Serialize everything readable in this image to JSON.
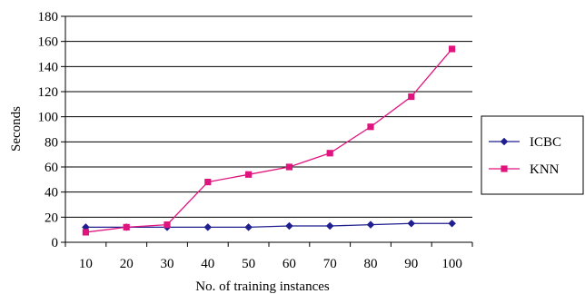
{
  "chart_data": {
    "type": "line",
    "title": "",
    "xlabel": "No. of training instances",
    "ylabel": "Seconds",
    "x": [
      10,
      20,
      30,
      40,
      50,
      60,
      70,
      80,
      90,
      100
    ],
    "x_tick_labels": [
      "10",
      "20",
      "30",
      "40",
      "50",
      "60",
      "70",
      "80",
      "90",
      "100"
    ],
    "ylim": [
      0,
      180
    ],
    "y_ticks": [
      0,
      20,
      40,
      60,
      80,
      100,
      120,
      140,
      160,
      180
    ],
    "y_tick_labels": [
      "0",
      "20",
      "40",
      "60",
      "80",
      "100",
      "120",
      "140",
      "160",
      "180"
    ],
    "grid": "horizontal",
    "legend_position": "right",
    "series": [
      {
        "name": "ICBC",
        "color": "#1f1f8f",
        "marker": "diamond",
        "values": [
          12,
          12,
          12,
          12,
          12,
          13,
          13,
          14,
          15,
          15
        ]
      },
      {
        "name": "KNN",
        "color": "#e0147f",
        "marker": "square",
        "values": [
          8,
          12,
          14,
          48,
          54,
          60,
          71,
          92,
          116,
          154
        ]
      }
    ]
  }
}
